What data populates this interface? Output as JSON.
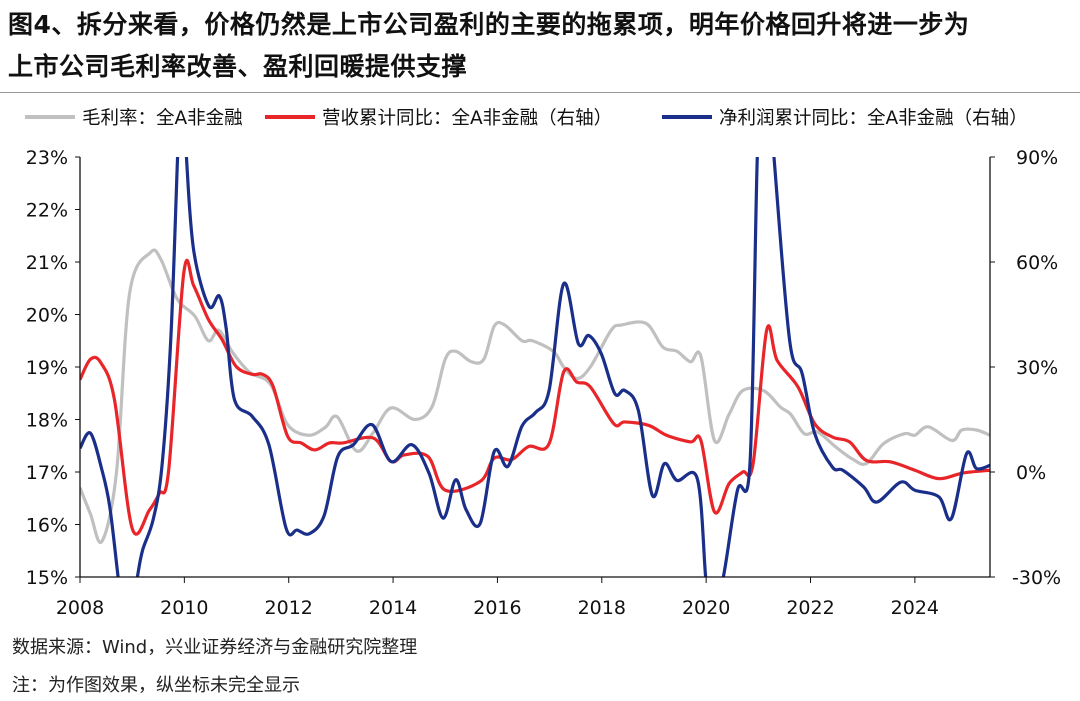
{
  "title": {
    "line1": "图4、拆分来看，价格仍然是上市公司盈利的主要的拖累项，明年价格回升将进一步为",
    "line2": "上市公司毛利率改善、盈利回暖提供支撑"
  },
  "footer": {
    "source": "数据来源：Wind，兴业证券经济与金融研究院整理",
    "note": "注：为作图效果，纵坐标未完全显示"
  },
  "chart_data": {
    "type": "line",
    "title": "",
    "xlabel": "",
    "ylabel": "",
    "xlim": [
      2008,
      2025.44
    ],
    "x_ticks": [
      "2008",
      "2010",
      "2012",
      "2014",
      "2016",
      "2018",
      "2020",
      "2022",
      "2024"
    ],
    "y_left": {
      "lim": [
        15,
        23
      ],
      "ticks": [
        "23%",
        "22%",
        "21%",
        "20%",
        "19%",
        "18%",
        "17%",
        "16%",
        "15%"
      ]
    },
    "y_right": {
      "lim": [
        -30,
        90
      ],
      "ticks": [
        "90%",
        "60%",
        "30%",
        "0%",
        "-30%"
      ]
    },
    "grid": false,
    "legend_position": "top",
    "series": [
      {
        "name": "毛利率：全A非金融",
        "axis": "left",
        "color": "#c0c0c0",
        "points": [
          [
            2008,
            16.7
          ],
          [
            2008.2,
            16.2
          ],
          [
            2008.42,
            15.68
          ],
          [
            2008.7,
            17.0
          ],
          [
            2008.95,
            20.4
          ],
          [
            2009.35,
            21.18
          ],
          [
            2009.55,
            21.05
          ],
          [
            2009.86,
            20.3
          ],
          [
            2010.2,
            19.97
          ],
          [
            2010.46,
            19.5
          ],
          [
            2010.66,
            19.7
          ],
          [
            2010.93,
            19.27
          ],
          [
            2011.25,
            18.9
          ],
          [
            2011.65,
            18.67
          ],
          [
            2011.98,
            17.9
          ],
          [
            2012.38,
            17.7
          ],
          [
            2012.7,
            17.85
          ],
          [
            2012.93,
            18.05
          ],
          [
            2013.3,
            17.4
          ],
          [
            2013.62,
            17.75
          ],
          [
            2013.96,
            18.22
          ],
          [
            2014.42,
            18.0
          ],
          [
            2014.75,
            18.25
          ],
          [
            2015.0,
            19.15
          ],
          [
            2015.2,
            19.3
          ],
          [
            2015.5,
            19.1
          ],
          [
            2015.74,
            19.15
          ],
          [
            2015.94,
            19.78
          ],
          [
            2016.14,
            19.8
          ],
          [
            2016.47,
            19.5
          ],
          [
            2016.67,
            19.5
          ],
          [
            2017.07,
            19.3
          ],
          [
            2017.27,
            19.0
          ],
          [
            2017.52,
            18.78
          ],
          [
            2017.78,
            19.0
          ],
          [
            2018.18,
            19.7
          ],
          [
            2018.38,
            19.8
          ],
          [
            2018.85,
            19.83
          ],
          [
            2019.17,
            19.38
          ],
          [
            2019.44,
            19.3
          ],
          [
            2019.7,
            19.1
          ],
          [
            2019.9,
            19.2
          ],
          [
            2020.16,
            17.6
          ],
          [
            2020.44,
            18.1
          ],
          [
            2020.7,
            18.55
          ],
          [
            2021.1,
            18.55
          ],
          [
            2021.42,
            18.24
          ],
          [
            2021.62,
            18.1
          ],
          [
            2021.88,
            17.73
          ],
          [
            2022.14,
            17.76
          ],
          [
            2022.48,
            17.48
          ],
          [
            2022.8,
            17.25
          ],
          [
            2023.07,
            17.16
          ],
          [
            2023.4,
            17.54
          ],
          [
            2023.8,
            17.73
          ],
          [
            2024.0,
            17.7
          ],
          [
            2024.26,
            17.86
          ],
          [
            2024.71,
            17.6
          ],
          [
            2024.9,
            17.8
          ],
          [
            2025.18,
            17.8
          ],
          [
            2025.44,
            17.7
          ]
        ]
      },
      {
        "name": "营收累计同比：全A非金融（右轴）",
        "axis": "right",
        "color": "#e8262a",
        "points": [
          [
            2008,
            26.4
          ],
          [
            2008.2,
            32.2
          ],
          [
            2008.4,
            31.2
          ],
          [
            2008.66,
            20.7
          ],
          [
            2009.0,
            -16.1
          ],
          [
            2009.33,
            -10.9
          ],
          [
            2009.52,
            -6.1
          ],
          [
            2009.7,
            0.6
          ],
          [
            2009.99,
            57
          ],
          [
            2010.18,
            53.2
          ],
          [
            2010.46,
            43.6
          ],
          [
            2010.72,
            37.9
          ],
          [
            2010.99,
            30.2
          ],
          [
            2011.3,
            27.9
          ],
          [
            2011.5,
            27.9
          ],
          [
            2011.7,
            24.5
          ],
          [
            2011.98,
            10.2
          ],
          [
            2012.24,
            8.3
          ],
          [
            2012.5,
            6.3
          ],
          [
            2012.78,
            8.3
          ],
          [
            2013.04,
            8.3
          ],
          [
            2013.62,
            9.7
          ],
          [
            2013.96,
            3.0
          ],
          [
            2014.22,
            4.9
          ],
          [
            2014.67,
            4.4
          ],
          [
            2015.0,
            -5.2
          ],
          [
            2015.67,
            -2.7
          ],
          [
            2015.94,
            4.0
          ],
          [
            2016.27,
            3.5
          ],
          [
            2016.6,
            7.3
          ],
          [
            2016.99,
            8.1
          ],
          [
            2017.27,
            28.6
          ],
          [
            2017.52,
            25.7
          ],
          [
            2017.78,
            24.3
          ],
          [
            2018.23,
            13.8
          ],
          [
            2018.44,
            14.3
          ],
          [
            2018.9,
            13.3
          ],
          [
            2019.24,
            10.5
          ],
          [
            2019.7,
            8.6
          ],
          [
            2019.9,
            9.0
          ],
          [
            2020.16,
            -11.4
          ],
          [
            2020.44,
            -3.3
          ],
          [
            2020.7,
            0
          ],
          [
            2020.9,
            2.4
          ],
          [
            2021.16,
            40.5
          ],
          [
            2021.36,
            31.9
          ],
          [
            2021.76,
            24.3
          ],
          [
            2022.08,
            13.8
          ],
          [
            2022.42,
            10.0
          ],
          [
            2022.75,
            8.6
          ],
          [
            2023.07,
            3.3
          ],
          [
            2023.53,
            2.9
          ],
          [
            2024.0,
            0.5
          ],
          [
            2024.46,
            -1.9
          ],
          [
            2024.92,
            -0.3
          ],
          [
            2025.44,
            0.5
          ]
        ]
      },
      {
        "name": "净利润累计同比：全A非金融（右轴）",
        "axis": "right",
        "color": "#1a2f8a",
        "points": [
          [
            2008,
            6.8
          ],
          [
            2008.2,
            11.1
          ],
          [
            2008.42,
            0.6
          ],
          [
            2008.57,
            -9.9
          ],
          [
            2008.73,
            -30
          ],
          [
            2008.85,
            -45
          ],
          [
            2009.0,
            -40
          ],
          [
            2009.1,
            -30
          ],
          [
            2009.2,
            -22.3
          ],
          [
            2009.4,
            -13.7
          ],
          [
            2009.57,
            1.6
          ],
          [
            2009.74,
            38
          ],
          [
            2009.87,
            90
          ],
          [
            2009.95,
            120
          ],
          [
            2010.04,
            90
          ],
          [
            2010.18,
            63.2
          ],
          [
            2010.47,
            47.4
          ],
          [
            2010.67,
            50.3
          ],
          [
            2010.8,
            41.2
          ],
          [
            2010.96,
            20.7
          ],
          [
            2011.3,
            15.9
          ],
          [
            2011.62,
            7.8
          ],
          [
            2011.95,
            -16.1
          ],
          [
            2012.16,
            -16.6
          ],
          [
            2012.4,
            -17.6
          ],
          [
            2012.68,
            -12.4
          ],
          [
            2012.94,
            4.4
          ],
          [
            2013.24,
            7.8
          ],
          [
            2013.6,
            13.5
          ],
          [
            2013.96,
            3.0
          ],
          [
            2014.36,
            7.8
          ],
          [
            2014.69,
            -0.4
          ],
          [
            2014.96,
            -13.2
          ],
          [
            2015.2,
            -2.2
          ],
          [
            2015.4,
            -10.8
          ],
          [
            2015.67,
            -14.7
          ],
          [
            2015.94,
            5.9
          ],
          [
            2016.2,
            1.6
          ],
          [
            2016.47,
            13.1
          ],
          [
            2016.73,
            17
          ],
          [
            2016.99,
            23.3
          ],
          [
            2017.27,
            53.8
          ],
          [
            2017.55,
            36.7
          ],
          [
            2017.75,
            39
          ],
          [
            2017.99,
            33.8
          ],
          [
            2018.25,
            22.4
          ],
          [
            2018.44,
            23.3
          ],
          [
            2018.7,
            17.6
          ],
          [
            2018.97,
            -6.7
          ],
          [
            2019.2,
            2.4
          ],
          [
            2019.44,
            -2.4
          ],
          [
            2019.83,
            -1.9
          ],
          [
            2019.99,
            -30
          ],
          [
            2020.08,
            -45
          ],
          [
            2020.33,
            -30
          ],
          [
            2020.6,
            -5.2
          ],
          [
            2020.84,
            2.4
          ],
          [
            2020.98,
            90
          ],
          [
            2021.1,
            130
          ],
          [
            2021.3,
            90
          ],
          [
            2021.6,
            37.6
          ],
          [
            2021.84,
            28.1
          ],
          [
            2022.08,
            11.0
          ],
          [
            2022.42,
            1.4
          ],
          [
            2022.62,
            0.5
          ],
          [
            2023.02,
            -4.3
          ],
          [
            2023.27,
            -8.6
          ],
          [
            2023.73,
            -2.9
          ],
          [
            2024.0,
            -5.2
          ],
          [
            2024.46,
            -7.1
          ],
          [
            2024.7,
            -13.3
          ],
          [
            2024.99,
            5.2
          ],
          [
            2025.18,
            1.0
          ],
          [
            2025.44,
            1.9
          ]
        ]
      }
    ]
  }
}
